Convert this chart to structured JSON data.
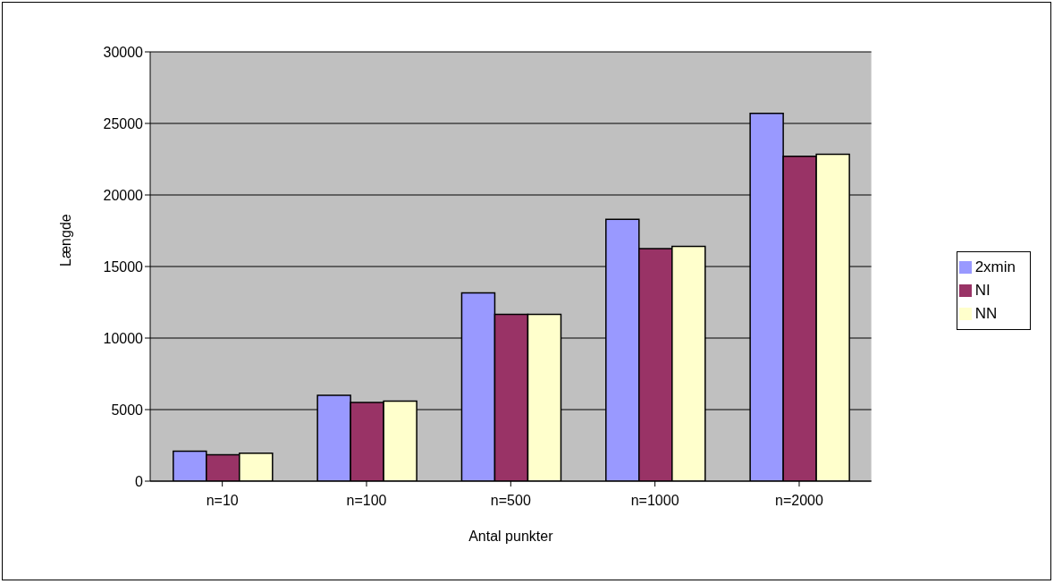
{
  "chart_data": {
    "type": "bar",
    "xlabel": "Antal punkter",
    "ylabel": "Længde",
    "categories": [
      "n=10",
      "n=100",
      "n=500",
      "n=1000",
      "n=2000"
    ],
    "series": [
      {
        "name": "2xmin",
        "color": "#9999ff",
        "values": [
          2100,
          6000,
          13150,
          18300,
          25700
        ]
      },
      {
        "name": "NI",
        "color": "#993366",
        "values": [
          1850,
          5500,
          11650,
          16250,
          22700
        ]
      },
      {
        "name": "NN",
        "color": "#ffffcc",
        "values": [
          1950,
          5600,
          11650,
          16400,
          22850
        ]
      }
    ],
    "ylim": [
      0,
      30000
    ],
    "yticks": [
      0,
      5000,
      10000,
      15000,
      20000,
      25000,
      30000
    ],
    "grid": "y",
    "legend": "right"
  }
}
